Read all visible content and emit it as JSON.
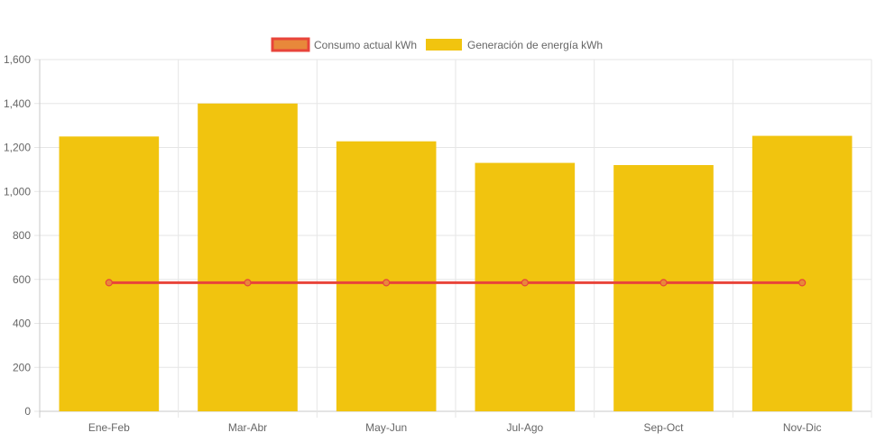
{
  "chart_data": {
    "type": "bar",
    "categories": [
      "Ene-Feb",
      "Mar-Abr",
      "May-Jun",
      "Jul-Ago",
      "Sep-Oct",
      "Nov-Dic"
    ],
    "series": [
      {
        "name": "Consumo actual kWh",
        "type": "line",
        "values": [
          585,
          585,
          585,
          585,
          585,
          585
        ],
        "color": "#e8443a",
        "point_color": "#e8883a"
      },
      {
        "name": "Generación de energía kWh",
        "type": "bar",
        "values": [
          1250,
          1400,
          1228,
          1130,
          1120,
          1253
        ],
        "color": "#f1c40f"
      }
    ],
    "ylim": [
      0,
      1600
    ],
    "yticks": [
      0,
      200,
      400,
      600,
      800,
      1000,
      1200,
      1400,
      1600
    ],
    "ytick_labels": [
      "0",
      "200",
      "400",
      "600",
      "800",
      "1,000",
      "1,200",
      "1,400",
      "1,600"
    ],
    "title": "",
    "xlabel": "",
    "ylabel": "",
    "grid": true,
    "legend_position": "top-center"
  }
}
